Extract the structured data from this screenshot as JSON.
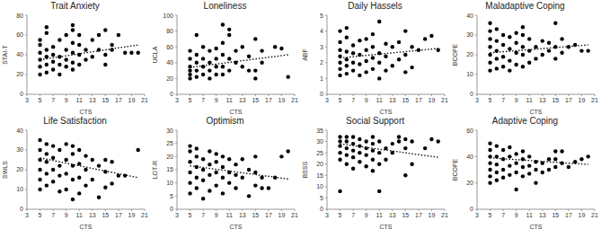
{
  "chart_data": [
    {
      "type": "scatter",
      "title": "Trait Anxiety",
      "x_label": "CTS",
      "y_label": "STAI-T",
      "color": "#000000",
      "marker": "circle",
      "x": [
        5,
        5,
        5,
        5,
        5,
        5,
        6,
        6,
        6,
        6,
        6,
        6,
        7,
        7,
        7,
        7,
        8,
        8,
        8,
        8,
        9,
        9,
        9,
        9,
        10,
        10,
        10,
        10,
        10,
        10,
        11,
        11,
        11,
        11,
        12,
        12,
        13,
        13,
        14,
        14,
        15,
        15,
        15,
        16,
        16,
        17,
        18,
        19,
        20
      ],
      "values": [
        20,
        28,
        35,
        42,
        50,
        55,
        22,
        30,
        38,
        45,
        62,
        68,
        25,
        33,
        40,
        48,
        20,
        30,
        38,
        55,
        28,
        35,
        45,
        60,
        25,
        32,
        42,
        52,
        65,
        70,
        30,
        40,
        50,
        60,
        35,
        45,
        38,
        55,
        45,
        60,
        30,
        40,
        65,
        45,
        50,
        60,
        42,
        42,
        42
      ],
      "trend": {
        "x": [
          5,
          20
        ],
        "values": [
          35,
          50
        ],
        "line_style": "dotted"
      },
      "xlim": [
        3,
        21
      ],
      "xticks": [
        3,
        5,
        7,
        9,
        11,
        13,
        15,
        17,
        19,
        21
      ],
      "ylim": [
        0,
        80
      ],
      "yticks": [
        0,
        20,
        40,
        60,
        80
      ]
    },
    {
      "type": "scatter",
      "title": "Loneliness",
      "x_label": "CTS",
      "y_label": "UCLA",
      "color": "#000000",
      "marker": "circle",
      "x": [
        5,
        5,
        5,
        5,
        5,
        5,
        6,
        6,
        6,
        6,
        6,
        7,
        7,
        7,
        7,
        8,
        8,
        8,
        8,
        9,
        9,
        9,
        9,
        10,
        10,
        10,
        10,
        10,
        11,
        11,
        11,
        11,
        12,
        12,
        13,
        13,
        14,
        14,
        15,
        15,
        15,
        16,
        16,
        18,
        19,
        20
      ],
      "values": [
        20,
        25,
        30,
        35,
        45,
        55,
        22,
        30,
        40,
        50,
        75,
        25,
        35,
        45,
        60,
        20,
        30,
        40,
        55,
        25,
        35,
        45,
        58,
        25,
        35,
        50,
        88,
        65,
        30,
        45,
        75,
        82,
        40,
        55,
        35,
        60,
        30,
        48,
        20,
        30,
        70,
        40,
        55,
        60,
        58,
        22
      ],
      "trend": {
        "x": [
          5,
          20
        ],
        "values": [
          34,
          50
        ],
        "line_style": "dotted"
      },
      "xlim": [
        3,
        21
      ],
      "xticks": [
        3,
        5,
        7,
        9,
        11,
        13,
        15,
        17,
        19,
        21
      ],
      "ylim": [
        0,
        100
      ],
      "yticks": [
        0,
        20,
        40,
        60,
        80,
        100
      ]
    },
    {
      "type": "scatter",
      "title": "Daily Hassels",
      "x_label": "CTS",
      "y_label": "ABF",
      "color": "#000000",
      "marker": "circle",
      "x": [
        5,
        5,
        5,
        5,
        5,
        5,
        5,
        6,
        6,
        6,
        6,
        6,
        6,
        7,
        7,
        7,
        7,
        8,
        8,
        8,
        8,
        9,
        9,
        9,
        9,
        10,
        10,
        10,
        10,
        11,
        11,
        11,
        11,
        12,
        12,
        12,
        13,
        13,
        14,
        14,
        15,
        15,
        15,
        16,
        16,
        17,
        18,
        19,
        20
      ],
      "values": [
        1.2,
        1.6,
        2.0,
        2.4,
        2.8,
        3.3,
        4.0,
        1.3,
        1.8,
        2.2,
        2.7,
        3.6,
        4.2,
        1.5,
        2.0,
        2.6,
        3.1,
        1.2,
        1.9,
        2.5,
        3.4,
        1.4,
        2.1,
        2.8,
        3.5,
        1.6,
        2.3,
        3.0,
        3.8,
        1.0,
        2.0,
        2.6,
        4.6,
        1.5,
        2.4,
        3.2,
        1.8,
        3.0,
        2.2,
        3.3,
        1.4,
        2.5,
        4.0,
        1.7,
        3.0,
        2.8,
        3.5,
        3.7,
        2.8
      ],
      "trend": {
        "x": [
          5,
          20
        ],
        "values": [
          2.3,
          2.9
        ],
        "line_style": "dotted"
      },
      "xlim": [
        3,
        21
      ],
      "xticks": [
        3,
        5,
        7,
        9,
        11,
        13,
        15,
        17,
        19,
        21
      ],
      "ylim": [
        0,
        5
      ],
      "yticks": [
        0,
        1,
        2,
        3,
        4,
        5
      ]
    },
    {
      "type": "scatter",
      "title": "Maladaptive Coping",
      "x_label": "CTS",
      "y_label": "BCOPE",
      "color": "#000000",
      "marker": "circle",
      "x": [
        5,
        5,
        5,
        5,
        5,
        5,
        5,
        6,
        6,
        6,
        6,
        6,
        7,
        7,
        7,
        7,
        8,
        8,
        8,
        8,
        9,
        9,
        9,
        9,
        10,
        10,
        10,
        10,
        10,
        11,
        11,
        11,
        12,
        12,
        13,
        13,
        14,
        14,
        15,
        15,
        15,
        16,
        16,
        17,
        18,
        19,
        20
      ],
      "values": [
        12,
        16,
        20,
        24,
        28,
        32,
        36,
        13,
        18,
        22,
        27,
        33,
        14,
        19,
        25,
        30,
        12,
        17,
        23,
        29,
        15,
        21,
        26,
        31,
        14,
        20,
        24,
        30,
        34,
        16,
        22,
        28,
        18,
        24,
        20,
        27,
        22,
        26,
        18,
        24,
        36,
        21,
        28,
        24,
        25,
        22,
        22
      ],
      "trend": {
        "x": [
          5,
          20
        ],
        "values": [
          21,
          25
        ],
        "line_style": "dotted"
      },
      "xlim": [
        3,
        21
      ],
      "xticks": [
        3,
        5,
        7,
        9,
        11,
        13,
        15,
        17,
        19,
        21
      ],
      "ylim": [
        0,
        40
      ],
      "yticks": [
        0,
        10,
        20,
        30,
        40
      ]
    },
    {
      "type": "scatter",
      "title": "Life Satisfaction",
      "x_label": "CTS",
      "y_label": "SWLS",
      "color": "#000000",
      "marker": "circle",
      "x": [
        5,
        5,
        5,
        5,
        5,
        5,
        6,
        6,
        6,
        6,
        6,
        7,
        7,
        7,
        7,
        8,
        8,
        8,
        8,
        9,
        9,
        9,
        9,
        10,
        10,
        10,
        10,
        10,
        11,
        11,
        11,
        11,
        12,
        12,
        12,
        13,
        13,
        14,
        14,
        15,
        15,
        15,
        16,
        16,
        17,
        18,
        20
      ],
      "values": [
        10,
        15,
        20,
        25,
        30,
        35,
        12,
        18,
        24,
        28,
        33,
        14,
        20,
        26,
        32,
        9,
        17,
        22,
        30,
        10,
        18,
        25,
        33,
        5,
        15,
        22,
        28,
        32,
        8,
        16,
        23,
        30,
        12,
        20,
        27,
        15,
        25,
        6,
        22,
        11,
        19,
        25,
        13,
        24,
        17,
        17,
        30
      ],
      "trend": {
        "x": [
          5,
          20
        ],
        "values": [
          26,
          16
        ],
        "line_style": "dotted"
      },
      "xlim": [
        3,
        21
      ],
      "xticks": [
        3,
        5,
        7,
        9,
        11,
        13,
        15,
        17,
        19,
        21
      ],
      "ylim": [
        0,
        40
      ],
      "yticks": [
        0,
        10,
        20,
        30,
        40
      ]
    },
    {
      "type": "scatter",
      "title": "Optimism",
      "x_label": "CTS",
      "y_label": "LOT-R",
      "color": "#000000",
      "marker": "circle",
      "x": [
        5,
        5,
        5,
        5,
        5,
        5,
        6,
        6,
        6,
        6,
        6,
        7,
        7,
        7,
        7,
        8,
        8,
        8,
        8,
        9,
        9,
        9,
        9,
        10,
        10,
        10,
        10,
        11,
        11,
        11,
        12,
        12,
        12,
        13,
        13,
        14,
        14,
        15,
        15,
        15,
        16,
        16,
        17,
        18,
        19,
        20
      ],
      "values": [
        6,
        10,
        14,
        18,
        22,
        24,
        8,
        12,
        16,
        20,
        23,
        4,
        11,
        15,
        19,
        7,
        13,
        17,
        22,
        9,
        14,
        18,
        21,
        6,
        12,
        16,
        20,
        10,
        14,
        19,
        8,
        13,
        17,
        12,
        19,
        5,
        15,
        9,
        14,
        20,
        8,
        12,
        8,
        12,
        20,
        22
      ],
      "trend": {
        "x": [
          5,
          20
        ],
        "values": [
          16.5,
          11.5
        ],
        "line_style": "dotted"
      },
      "xlim": [
        3,
        21
      ],
      "xticks": [
        3,
        5,
        7,
        9,
        11,
        13,
        15,
        17,
        19,
        21
      ],
      "ylim": [
        0,
        30
      ],
      "yticks": [
        0,
        5,
        10,
        15,
        20,
        25,
        30
      ]
    },
    {
      "type": "scatter",
      "title": "Social Support",
      "x_label": "CTS",
      "y_label": "BSSS",
      "color": "#000000",
      "marker": "circle",
      "x": [
        5,
        5,
        5,
        5,
        5,
        5,
        6,
        6,
        6,
        6,
        6,
        7,
        7,
        7,
        7,
        7,
        8,
        8,
        8,
        8,
        9,
        9,
        9,
        9,
        10,
        10,
        10,
        10,
        10,
        11,
        11,
        11,
        11,
        12,
        12,
        13,
        13,
        14,
        14,
        15,
        15,
        15,
        16,
        16,
        18,
        19,
        20
      ],
      "values": [
        8,
        22,
        25,
        28,
        30,
        32,
        20,
        24,
        27,
        30,
        32,
        18,
        23,
        26,
        29,
        32,
        21,
        25,
        28,
        31,
        19,
        24,
        27,
        30,
        17,
        22,
        26,
        29,
        32,
        8,
        20,
        25,
        30,
        22,
        27,
        25,
        29,
        30,
        32,
        15,
        27,
        31,
        20,
        30,
        27,
        31,
        30
      ],
      "trend": {
        "x": [
          5,
          20
        ],
        "values": [
          29,
          23
        ],
        "line_style": "dotted"
      },
      "xlim": [
        3,
        21
      ],
      "xticks": [
        3,
        5,
        7,
        9,
        11,
        13,
        15,
        17,
        19,
        21
      ],
      "ylim": [
        0,
        35
      ],
      "yticks": [
        0,
        5,
        10,
        15,
        20,
        25,
        30,
        35
      ]
    },
    {
      "type": "scatter",
      "title": "Adaptive Coping",
      "x_label": "CTS",
      "y_label": "BCOPE",
      "color": "#000000",
      "marker": "circle",
      "x": [
        5,
        5,
        5,
        5,
        5,
        5,
        5,
        6,
        6,
        6,
        6,
        6,
        7,
        7,
        7,
        7,
        8,
        8,
        8,
        8,
        9,
        9,
        9,
        9,
        10,
        10,
        10,
        10,
        11,
        11,
        11,
        12,
        12,
        12,
        13,
        13,
        14,
        14,
        15,
        15,
        15,
        16,
        16,
        17,
        18,
        19,
        20
      ],
      "values": [
        20,
        25,
        30,
        35,
        40,
        45,
        50,
        22,
        28,
        34,
        40,
        48,
        24,
        30,
        38,
        45,
        26,
        33,
        40,
        47,
        15,
        28,
        35,
        42,
        25,
        32,
        38,
        44,
        27,
        33,
        40,
        20,
        30,
        36,
        28,
        35,
        30,
        38,
        32,
        38,
        44,
        35,
        44,
        32,
        36,
        38,
        40
      ],
      "trend": {
        "x": [
          5,
          20
        ],
        "values": [
          39,
          34
        ],
        "line_style": "dotted"
      },
      "xlim": [
        3,
        21
      ],
      "xticks": [
        3,
        5,
        7,
        9,
        11,
        13,
        15,
        17,
        19,
        21
      ],
      "ylim": [
        0,
        60
      ],
      "yticks": [
        0,
        20,
        40,
        60
      ]
    }
  ]
}
